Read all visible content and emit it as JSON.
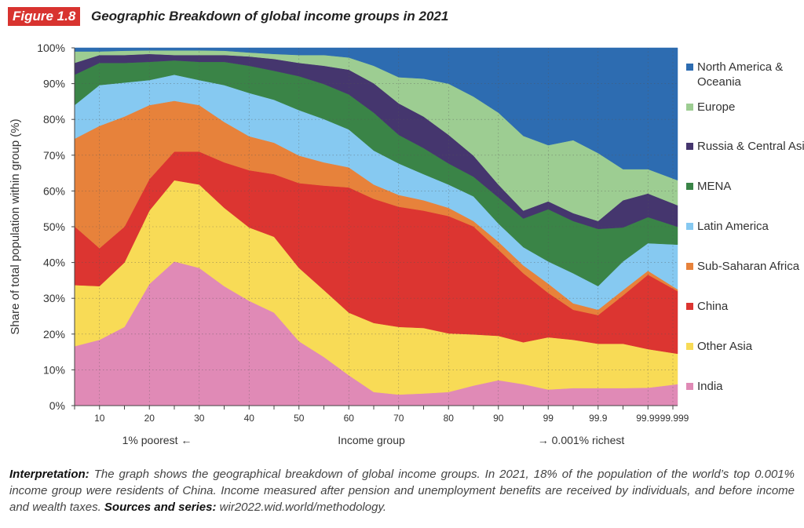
{
  "figure": {
    "badge": "Figure 1.8",
    "title": "Geographic Breakdown of global income groups in 2021"
  },
  "chart_data": {
    "type": "area",
    "stacked": true,
    "title": "Geographic Breakdown of global income groups in 2021",
    "ylabel": "Share of total population within group (%)",
    "xlabel": "Income group",
    "x_annotations": {
      "left": "1% poorest ←",
      "right": "→ 0.001% richest"
    },
    "ylim": [
      0,
      100
    ],
    "yticks": [
      "0%",
      "10%",
      "20%",
      "30%",
      "40%",
      "50%",
      "60%",
      "70%",
      "80%",
      "90%",
      "100%"
    ],
    "xtick_labels": [
      "10",
      "20",
      "30",
      "40",
      "50",
      "60",
      "70",
      "80",
      "90",
      "99",
      "99.9",
      "99.99",
      "99.999"
    ],
    "grid": true,
    "legend_position": "right",
    "x": [
      5,
      10,
      15,
      20,
      25,
      30,
      35,
      40,
      45,
      50,
      55,
      60,
      65,
      70,
      75,
      80,
      85,
      90,
      95,
      99,
      99.5,
      99.9,
      99.95,
      99.99,
      99.999
    ],
    "series": [
      {
        "name": "India",
        "color": "#e08ab6",
        "values": [
          16.6,
          18.4,
          22.0,
          34.0,
          40.3,
          38.5,
          33.4,
          29.3,
          26.0,
          18.0,
          13.6,
          8.5,
          3.8,
          3.1,
          3.4,
          3.8,
          5.6,
          7.1,
          6.0,
          4.5,
          4.9,
          4.9,
          4.9,
          5.0,
          6.0
        ]
      },
      {
        "name": "Other Asia",
        "color": "#f8db56",
        "values": [
          17.1,
          15.0,
          18.0,
          20.5,
          22.7,
          23.3,
          21.9,
          20.5,
          21.2,
          20.5,
          18.7,
          17.5,
          19.3,
          18.9,
          18.3,
          16.4,
          14.3,
          12.4,
          11.7,
          14.6,
          13.5,
          12.4,
          12.4,
          10.8,
          8.5
        ]
      },
      {
        "name": "China",
        "color": "#dc3531",
        "values": [
          16.4,
          10.6,
          10.0,
          8.8,
          8.0,
          9.2,
          12.7,
          16.0,
          17.5,
          23.7,
          29.2,
          35.0,
          34.7,
          33.6,
          32.8,
          32.8,
          30.2,
          24.1,
          19.3,
          12.4,
          8.4,
          8.0,
          13.5,
          20.8,
          17.5
        ]
      },
      {
        "name": "Sub-Saharan Africa",
        "color": "#e7823b",
        "values": [
          24.5,
          34.2,
          30.8,
          20.7,
          14.2,
          13.0,
          11.3,
          9.5,
          8.8,
          7.7,
          6.5,
          5.6,
          4.0,
          3.3,
          2.9,
          2.3,
          1.5,
          2.2,
          2.2,
          2.6,
          1.8,
          1.5,
          1.5,
          1.1,
          0.5
        ]
      },
      {
        "name": "Latin America",
        "color": "#86c9f1",
        "values": [
          9.4,
          11.4,
          9.5,
          7.0,
          7.3,
          7.0,
          10.3,
          12.1,
          12.0,
          12.7,
          12.1,
          10.6,
          9.5,
          8.8,
          7.3,
          6.5,
          6.9,
          5.1,
          5.1,
          6.2,
          8.4,
          6.6,
          8.0,
          7.7,
          12.5
        ]
      },
      {
        "name": "MENA",
        "color": "#3a8447",
        "values": [
          8.5,
          6.2,
          5.5,
          5.1,
          4.0,
          5.1,
          6.5,
          7.6,
          8.1,
          9.5,
          9.8,
          9.8,
          10.6,
          8.0,
          7.3,
          5.9,
          5.5,
          7.3,
          8.0,
          14.6,
          14.6,
          16.0,
          9.5,
          7.3,
          5.0
        ]
      },
      {
        "name": "Russia & Central Asia",
        "color": "#45366e",
        "values": [
          3.3,
          2.2,
          2.2,
          2.2,
          1.5,
          1.9,
          1.9,
          2.6,
          3.3,
          3.7,
          5.1,
          6.9,
          8.2,
          8.8,
          8.8,
          8.0,
          5.9,
          3.6,
          2.2,
          2.2,
          2.2,
          2.2,
          7.6,
          6.6,
          6.0
        ]
      },
      {
        "name": "Europe",
        "color": "#9dcd92",
        "values": [
          3.2,
          1.0,
          1.2,
          1.0,
          1.3,
          1.3,
          1.2,
          1.1,
          1.4,
          2.2,
          3.0,
          3.4,
          4.9,
          7.3,
          10.6,
          14.3,
          16.5,
          20.1,
          20.9,
          15.7,
          20.4,
          19.0,
          8.7,
          6.8,
          7.0
        ]
      },
      {
        "name": "North America & Oceania",
        "color": "#2d6cb1",
        "values": [
          1.0,
          1.0,
          0.8,
          0.7,
          0.7,
          0.7,
          0.8,
          1.3,
          1.7,
          2.0,
          2.0,
          2.7,
          5.0,
          8.2,
          8.6,
          10.0,
          13.6,
          18.1,
          24.6,
          27.2,
          25.8,
          29.4,
          33.9,
          33.9,
          37.0
        ]
      }
    ]
  },
  "legend": [
    "North America & Oceania",
    "Europe",
    "Russia & Central Asia",
    "MENA",
    "Latin America",
    "Sub-Saharan Africa",
    "China",
    "Other Asia",
    "India"
  ],
  "caption": {
    "label": "Interpretation:",
    "text": " The graph shows the geographical breakdown of global income groups. In 2021, 18% of the population of the world’s top 0.001% income group were residents of China. Income measured after pension and unemployment benefits are received by individuals, and before income and wealth taxes. ",
    "sources_label": "Sources and series:",
    "sources": " wir2022.wid.world/methodology."
  }
}
